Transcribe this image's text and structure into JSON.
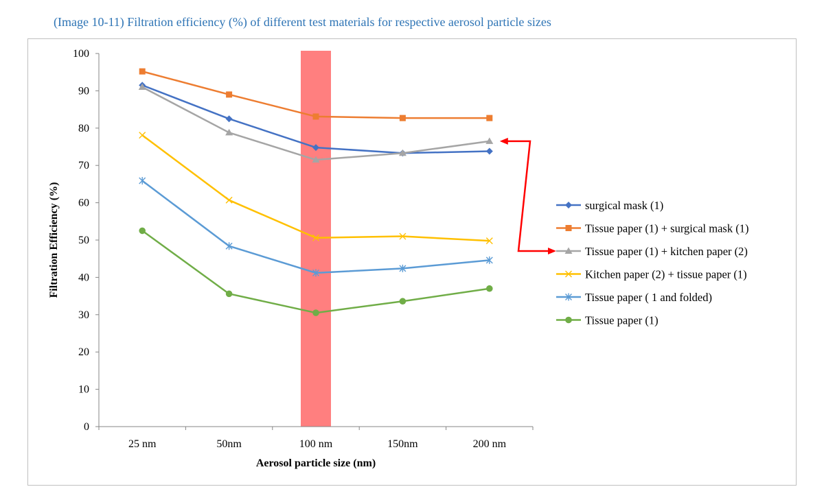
{
  "caption": "(Image 10-11) Filtration efficiency (%) of different test materials for respective aerosol particle sizes",
  "chart_data": {
    "type": "line",
    "title": "",
    "xlabel": "Aerosol particle size (nm)",
    "ylabel": "Filtration Efficiency (%)",
    "categories": [
      "25 nm",
      "50nm",
      "100 nm",
      "150nm",
      "200 nm"
    ],
    "ylim": [
      0,
      100
    ],
    "yticks": [
      0,
      10,
      20,
      30,
      40,
      50,
      60,
      70,
      80,
      90,
      100
    ],
    "grid": false,
    "legend_position": "right",
    "highlight": {
      "category": "100 nm",
      "color": "#ff7f7f"
    },
    "annotation_arrow_color": "#ff0000",
    "series": [
      {
        "name": "surgical mask (1)",
        "color": "#4472c4",
        "marker": "diamond",
        "values": [
          91.5,
          82.5,
          74.8,
          73.3,
          73.8
        ]
      },
      {
        "name": "Tissue paper (1) + surgical mask (1)",
        "color": "#ed7d31",
        "marker": "square",
        "values": [
          95.2,
          89.0,
          83.1,
          82.7,
          82.7
        ]
      },
      {
        "name": "Tissue paper (1) +  kitchen paper (2)",
        "color": "#a5a5a5",
        "marker": "triangle",
        "values": [
          91.0,
          78.8,
          71.5,
          73.3,
          76.5
        ]
      },
      {
        "name": "Kitchen paper (2) + tissue paper (1)",
        "color": "#ffc000",
        "marker": "x",
        "values": [
          78.1,
          60.7,
          50.6,
          51.0,
          49.8
        ]
      },
      {
        "name": "Tissue paper ( 1 and folded)",
        "color": "#5b9bd5",
        "marker": "star",
        "values": [
          65.9,
          48.4,
          41.2,
          42.4,
          44.6
        ]
      },
      {
        "name": "Tissue paper (1)",
        "color": "#70ad47",
        "marker": "circle",
        "values": [
          52.5,
          35.6,
          30.5,
          33.6,
          37.0
        ]
      }
    ]
  }
}
